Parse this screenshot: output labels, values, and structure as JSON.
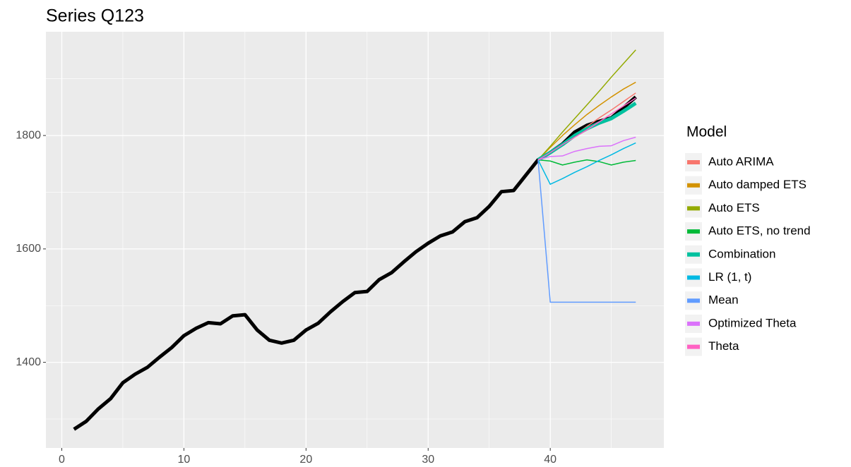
{
  "chart_data": {
    "type": "line",
    "title": "Series Q123",
    "x": [
      1,
      2,
      3,
      4,
      5,
      6,
      7,
      8,
      9,
      10,
      11,
      12,
      13,
      14,
      15,
      16,
      17,
      18,
      19,
      20,
      21,
      22,
      23,
      24,
      25,
      26,
      27,
      28,
      29,
      30,
      31,
      32,
      33,
      34,
      35,
      36,
      37,
      38,
      39,
      40,
      41,
      42,
      43,
      44,
      45,
      46,
      47
    ],
    "values": [
      1282,
      1296,
      1318,
      1336,
      1364,
      1379,
      1391,
      1409,
      1426,
      1447,
      1460,
      1470,
      1468,
      1482,
      1484,
      1457,
      1439,
      1434,
      1439,
      1457,
      1469,
      1489,
      1507,
      1523,
      1525,
      1546,
      1558,
      1577,
      1595,
      1610,
      1623,
      1630,
      1648,
      1655,
      1675,
      1701,
      1703,
      1730,
      1757,
      1770,
      1785,
      1806,
      1818,
      1825,
      1831,
      1849,
      1868
    ],
    "color": "#000000",
    "width": 5,
    "legend_title": "Model",
    "series": [
      {
        "name": "Auto ARIMA",
        "color": "#F8766D",
        "width": 1.5,
        "x": [
          39,
          40,
          41,
          42,
          43,
          44,
          45,
          46,
          47
        ],
        "values": [
          1757,
          1772,
          1786,
          1801,
          1816,
          1831,
          1845,
          1860,
          1875
        ]
      },
      {
        "name": "Auto damped ETS",
        "color": "#D39200",
        "width": 1.5,
        "x": [
          39,
          40,
          41,
          42,
          43,
          44,
          45,
          46,
          47
        ],
        "values": [
          1757,
          1779,
          1800,
          1819,
          1837,
          1853,
          1868,
          1882,
          1894
        ]
      },
      {
        "name": "Auto ETS",
        "color": "#93AA00",
        "width": 1.5,
        "x": [
          39,
          40,
          41,
          42,
          43,
          44,
          45,
          46,
          47
        ],
        "values": [
          1757,
          1781,
          1806,
          1830,
          1854,
          1878,
          1903,
          1927,
          1951
        ]
      },
      {
        "name": "Auto ETS, no trend",
        "color": "#00BA38",
        "width": 1.5,
        "x": [
          39,
          40,
          41,
          42,
          43,
          44,
          45,
          46,
          47
        ],
        "values": [
          1757,
          1755,
          1748,
          1753,
          1757,
          1754,
          1748,
          1753,
          1756
        ]
      },
      {
        "name": "Combination",
        "color": "#00C19F",
        "width": 5,
        "x": [
          39,
          40,
          41,
          42,
          43,
          44,
          45,
          46,
          47
        ],
        "values": [
          1757,
          1770,
          1784,
          1800,
          1812,
          1822,
          1830,
          1843,
          1857
        ]
      },
      {
        "name": "LR (1, t)",
        "color": "#00B9E3",
        "width": 1.5,
        "x": [
          39,
          40,
          41,
          42,
          43,
          44,
          45,
          46,
          47
        ],
        "values": [
          1757,
          1714,
          1724,
          1735,
          1745,
          1756,
          1766,
          1777,
          1787
        ]
      },
      {
        "name": "Mean",
        "color": "#619CFF",
        "width": 1.5,
        "x": [
          39,
          40,
          41,
          42,
          43,
          44,
          45,
          46,
          47
        ],
        "values": [
          1757,
          1506,
          1506,
          1506,
          1506,
          1506,
          1506,
          1506,
          1506
        ]
      },
      {
        "name": "Optimized Theta",
        "color": "#DB72FB",
        "width": 1.5,
        "x": [
          39,
          40,
          41,
          42,
          43,
          44,
          45,
          46,
          47
        ],
        "values": [
          1757,
          1763,
          1764,
          1772,
          1777,
          1781,
          1782,
          1791,
          1797
        ]
      },
      {
        "name": "Theta",
        "color": "#FF61C3",
        "width": 1.5,
        "x": [
          39,
          40,
          41,
          42,
          43,
          44,
          45,
          46,
          47
        ],
        "values": [
          1757,
          1770,
          1784,
          1797,
          1810,
          1824,
          1838,
          1852,
          1866
        ]
      }
    ],
    "xlim": [
      -1.3,
      49.3
    ],
    "ylim": [
      1249,
      1983
    ],
    "xticks": [
      0,
      10,
      20,
      30,
      40
    ],
    "yticks": [
      1400,
      1600,
      1800
    ],
    "xminor": [
      5,
      15,
      25,
      35,
      45
    ],
    "yminor": [
      1300,
      1500,
      1700,
      1900
    ],
    "grid": true
  }
}
